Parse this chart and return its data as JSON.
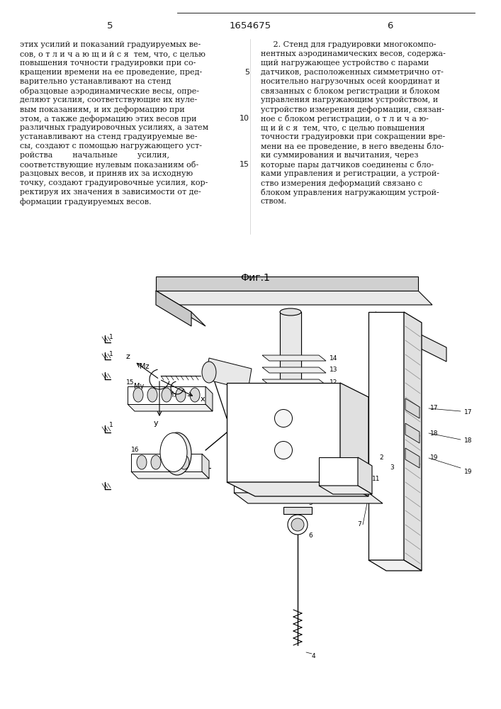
{
  "page_number_left": "5",
  "page_number_center": "1654675",
  "page_number_right": "6",
  "col1_lines": [
    "этих усилий и показаний градуируемых ве-",
    "сов, о т л и ч а ю щ и й с я  тем, что, с целью",
    "повышения точности градуировки при со-",
    "кращении времени на ее проведение, пред-",
    "варительно устанавливают на стенд",
    "образцовые аэродинамические весы, опре-",
    "деляют усилия, соответствующие их нуле-",
    "вым показаниям, и их деформацию при",
    "этом, а также деформацию этих весов при",
    "различных градуировочных усилиях, а затем",
    "устанавливают на стенд градуируемые ве-",
    "сы, создают с помощью нагружающего уст-",
    "ройства        начальные        усилия,",
    "соответствующие нулевым показаниям об-",
    "разцовых весов, и приняв их за исходную",
    "точку, создают градуировочные усилия, кор-",
    "ректируя их значения в зависимости от де-",
    "формации градуируемых весов."
  ],
  "col2_lines": [
    "     2. Стенд для градуировки многокомпо-",
    "нентных аэродинамических весов, содержа-",
    "щий нагружающее устройство с парами",
    "датчиков, расположенных симметрично от-",
    "носительно нагрузочных осей координат и",
    "связанных с блоком регистрации и блоком",
    "управления нагружающим устройством, и",
    "устройство измерения деформации, связан-",
    "ное с блоком регистрации, о т л и ч а ю-",
    "щ и й с я  тем, что, с целью повышения",
    "точности градуировки при сокращении вре-",
    "мени на ее проведение, в него введены бло-",
    "ки суммирования и вычитания, через",
    "которые пары датчиков соединены с бло-",
    "ками управления и регистрации, а устрой-",
    "ство измерения деформаций связано с",
    "блоком управления нагружающим устрой-",
    "ством."
  ],
  "line_numbers": {
    "5": 4,
    "10": 9,
    "15": 14
  },
  "fig_label": "Фиг.1",
  "background_color": "#ffffff",
  "text_color": "#1a1a1a"
}
